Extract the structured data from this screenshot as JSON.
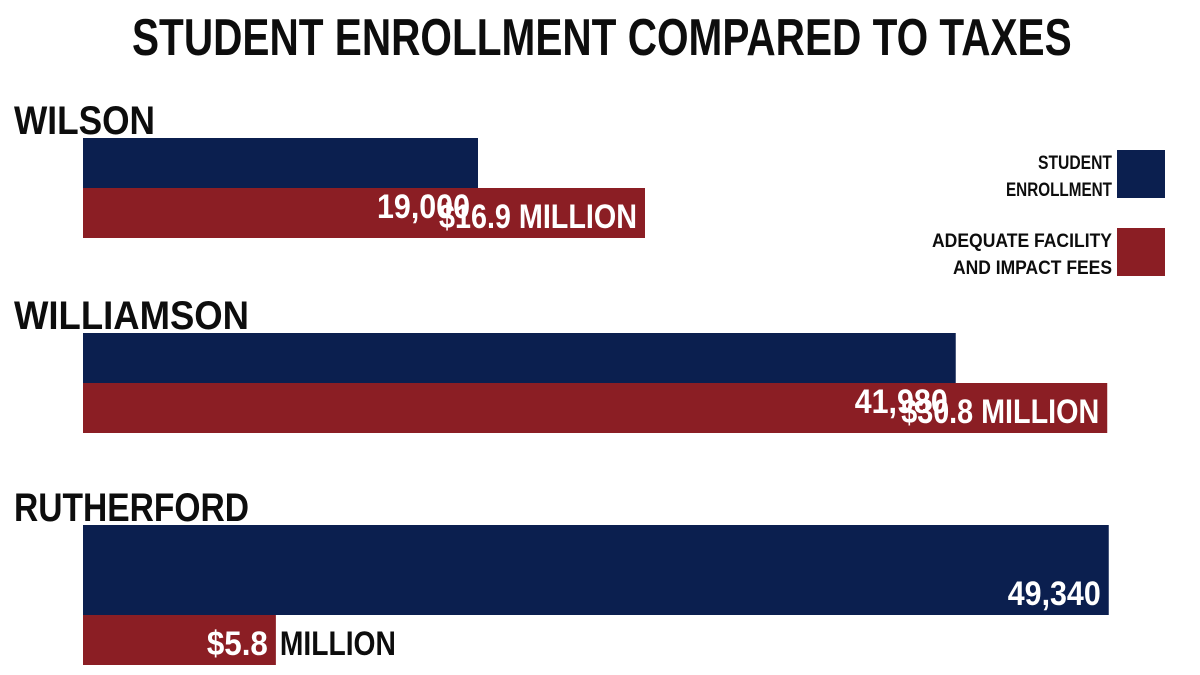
{
  "chart_data": {
    "type": "bar",
    "orientation": "horizontal",
    "title": "STUDENT ENROLLMENT COMPARED TO TAXES",
    "categories": [
      "WILSON",
      "WILLIAMSON",
      "RUTHERFORD"
    ],
    "series": [
      {
        "name": "STUDENT ENROLLMENT",
        "legend_lines": [
          "STUDENT",
          "ENROLLMENT"
        ],
        "color": "#0b1f4f",
        "values": [
          19000,
          41980,
          49340
        ],
        "labels": [
          "19,000",
          "41,980",
          "49,340"
        ]
      },
      {
        "name": "ADEQUATE FACILITY AND IMPACT FEES",
        "legend_lines": [
          "ADEQUATE FACILITY",
          "AND IMPACT FEES"
        ],
        "color": "#8b1e24",
        "values": [
          16.9,
          30.8,
          5.8
        ],
        "labels": [
          "$16.9 MILLION",
          "$30.8 MILLION",
          "$5.8"
        ],
        "label_suffix_outside": [
          "",
          "",
          "MILLION"
        ]
      }
    ],
    "legend": "right",
    "grid": false
  }
}
